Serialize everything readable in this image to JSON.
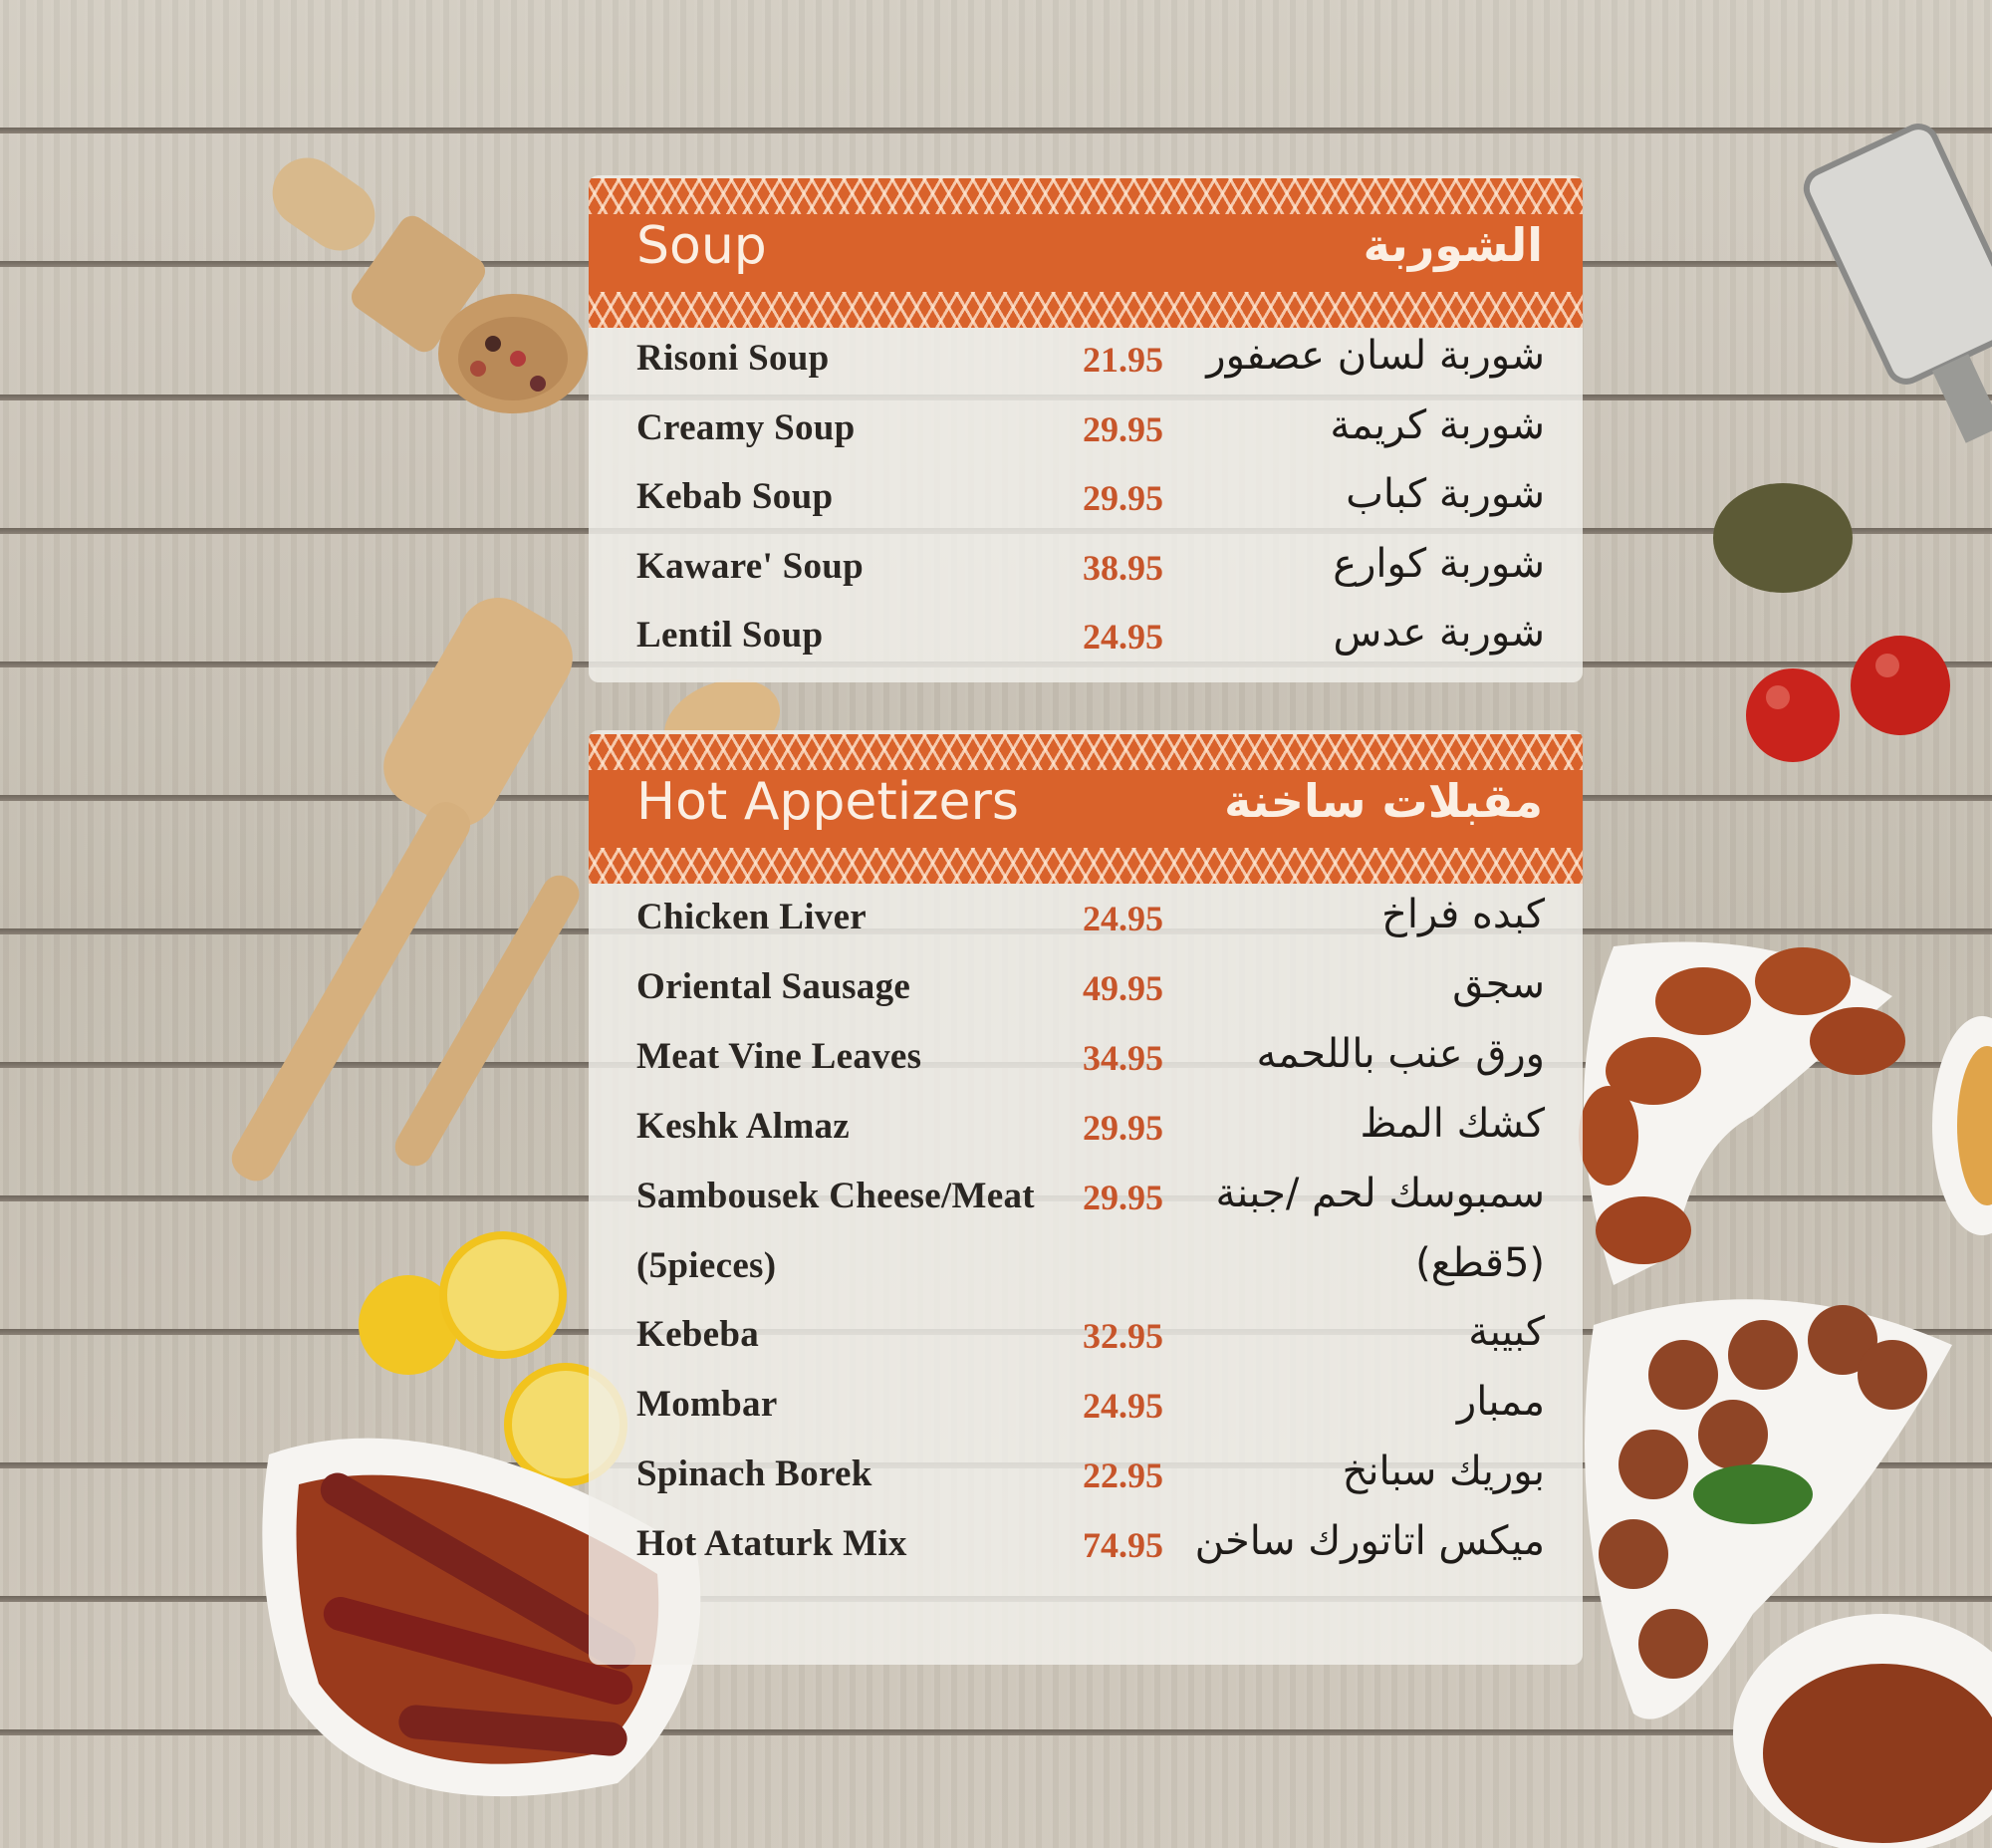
{
  "colors": {
    "accent": "#d9622b",
    "price": "#c7552a",
    "text": "#2a2622"
  },
  "sections": [
    {
      "title_en": "Soup",
      "title_ar": "الشوربة",
      "items": [
        {
          "en": "Risoni Soup",
          "price": "21.95",
          "ar": "شوربة لسان عصفور"
        },
        {
          "en": "Creamy Soup",
          "price": "29.95",
          "ar": "شوربة كريمة"
        },
        {
          "en": "Kebab Soup",
          "price": "29.95",
          "ar": "شوربة كباب"
        },
        {
          "en": "Kaware' Soup",
          "price": "38.95",
          "ar": "شوربة كوارع"
        },
        {
          "en": "Lentil Soup",
          "price": "24.95",
          "ar": "شوربة عدس"
        }
      ]
    },
    {
      "title_en": "Hot Appetizers",
      "title_ar": "مقبلات ساخنة",
      "items": [
        {
          "en": "Chicken Liver",
          "price": "24.95",
          "ar": "كبده فراخ"
        },
        {
          "en": "Oriental Sausage",
          "price": "49.95",
          "ar": "سجق"
        },
        {
          "en": "Meat Vine Leaves",
          "price": "34.95",
          "ar": "ورق عنب باللحمه"
        },
        {
          "en": "Keshk Almaz",
          "price": "29.95",
          "ar": "كشك المظ"
        },
        {
          "en": "Sambousek Cheese/Meat",
          "price": "29.95",
          "ar": "سمبوسك لحم /جبنة"
        },
        {
          "en": "(5pieces)",
          "price": "",
          "ar": "(5قطع)"
        },
        {
          "en": "Kebeba",
          "price": "32.95",
          "ar": "كبيبة"
        },
        {
          "en": "Mombar",
          "price": "24.95",
          "ar": "ممبار"
        },
        {
          "en": "Spinach Borek",
          "price": "22.95",
          "ar": "بوريك سبانخ"
        },
        {
          "en": "Hot Ataturk Mix",
          "price": "74.95",
          "ar": "ميكس اتاتورك ساخن"
        }
      ]
    }
  ]
}
